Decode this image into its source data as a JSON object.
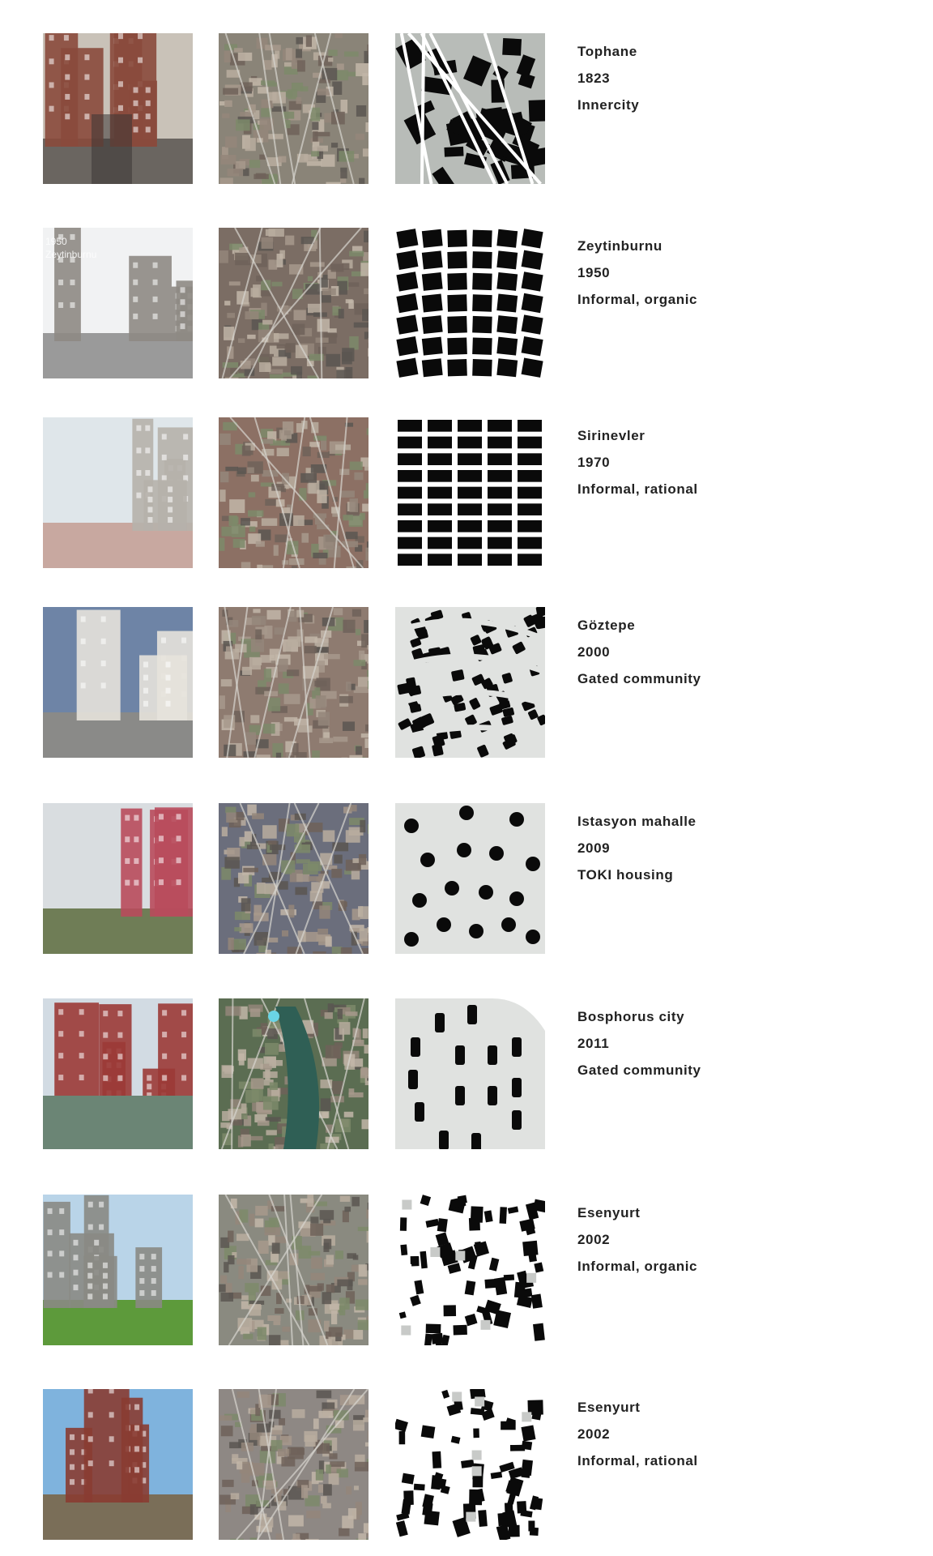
{
  "rows": [
    {
      "name": "Tophane",
      "year": "1823",
      "type": "Innercity",
      "photo_overlay": "",
      "photo_palette": {
        "sky": "#c9c2b8",
        "ground": "#6a6560",
        "building": "#8a4a3c"
      },
      "aerial_tone": "#8a8478",
      "ground_tone": "#b8bcb8"
    },
    {
      "name": "Zeytinburnu",
      "year": "1950",
      "type": "Informal, organic",
      "photo_overlay": "1950 Zeytinburnu",
      "photo_palette": {
        "sky": "#f1f2f3",
        "ground": "#9a9a9a",
        "building": "#8e8a84"
      },
      "aerial_tone": "#7b6d64",
      "ground_tone": "#ffffff"
    },
    {
      "name": "Sirinevler",
      "year": "1970",
      "type": "Informal, rational",
      "photo_overlay": "",
      "photo_palette": {
        "sky": "#dfe6ea",
        "ground": "#c8a8a0",
        "building": "#b6b1ab"
      },
      "aerial_tone": "#8c7064",
      "ground_tone": "#ffffff"
    },
    {
      "name": "Göztepe",
      "year": "2000",
      "type": "Gated community",
      "photo_overlay": "",
      "photo_palette": {
        "sky": "#6e84a6",
        "ground": "#8a8a88",
        "building": "#e6e2dc"
      },
      "aerial_tone": "#8e7b70",
      "ground_tone": "#e0e2e0"
    },
    {
      "name": "Istasyon mahalle",
      "year": "2009",
      "type": "TOKI housing",
      "photo_overlay": "",
      "photo_palette": {
        "sky": "#d9dde0",
        "ground": "#6f7d56",
        "building": "#b84b5c"
      },
      "aerial_tone": "#6b6e7c",
      "ground_tone": "#e0e2e0"
    },
    {
      "name": "Bosphorus city",
      "year": "2011",
      "type": "Gated community",
      "photo_overlay": "",
      "photo_palette": {
        "sky": "#d2dbe3",
        "ground": "#5d7a6a",
        "building": "#9b3a36"
      },
      "aerial_tone": "#5b6d52",
      "ground_tone": "#e0e2e0"
    },
    {
      "name": "Esenyurt",
      "year": "2002",
      "type": "Informal, organic",
      "photo_overlay": "",
      "photo_palette": {
        "sky": "#b9d4e8",
        "ground": "#5d9a3b",
        "building": "#8a8a84"
      },
      "aerial_tone": "#8a8a80",
      "ground_tone": "#ffffff"
    },
    {
      "name": "Esenyurt",
      "year": "2002",
      "type": "Informal, rational",
      "photo_overlay": "",
      "photo_palette": {
        "sky": "#7fb3dd",
        "ground": "#7a6e58",
        "building": "#8a3c32"
      },
      "aerial_tone": "#8e8884",
      "ground_tone": "#ffffff"
    }
  ]
}
